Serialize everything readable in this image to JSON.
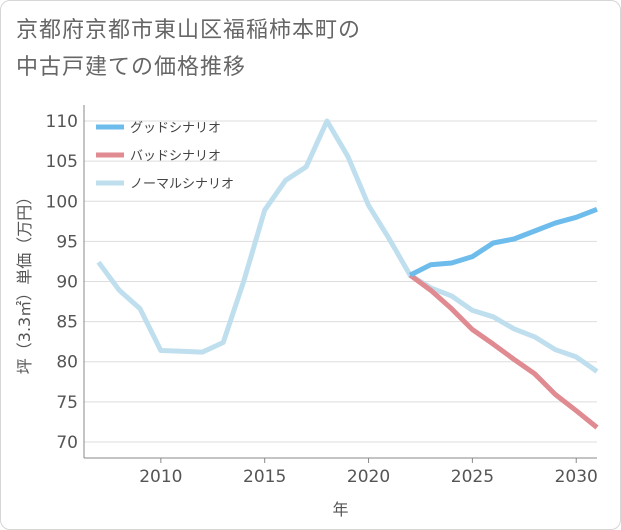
{
  "title": {
    "line1": "京都府京都市東山区福稲柿本町の",
    "line2": "中古戸建ての価格推移"
  },
  "chart_data": {
    "type": "line",
    "xlabel": "年",
    "ylabel": "坪（3.3㎡）単価（万円）",
    "xlim": [
      2006.3,
      2031
    ],
    "ylim": [
      68,
      112
    ],
    "x_ticks": [
      2010,
      2015,
      2020,
      2025,
      2030
    ],
    "y_ticks": [
      70,
      75,
      80,
      85,
      90,
      95,
      100,
      105,
      110
    ],
    "grid": "horizontal",
    "legend_position": "top-left",
    "series": [
      {
        "name": "グッドシナリオ",
        "color": "#6dbcec",
        "x": [
          2022,
          2023,
          2024,
          2025,
          2026,
          2027,
          2028,
          2029,
          2030,
          2031
        ],
        "y": [
          90.8,
          92.1,
          92.3,
          93.1,
          94.8,
          95.3,
          96.3,
          97.3,
          98.0,
          99.0
        ]
      },
      {
        "name": "バッドシナリオ",
        "color": "#e08b91",
        "x": [
          2022,
          2023,
          2024,
          2025,
          2026,
          2027,
          2028,
          2029,
          2030,
          2031
        ],
        "y": [
          90.8,
          88.9,
          86.6,
          84.0,
          82.2,
          80.3,
          78.5,
          75.9,
          73.9,
          71.8
        ]
      },
      {
        "name": "ノーマルシナリオ",
        "color": "#bfdfee",
        "x": [
          2007,
          2008,
          2009,
          2010,
          2011,
          2012,
          2013,
          2014,
          2015,
          2016,
          2017,
          2018,
          2019,
          2020,
          2021,
          2022,
          2023,
          2024,
          2025,
          2026,
          2027,
          2028,
          2029,
          2030,
          2031
        ],
        "y": [
          92.4,
          88.9,
          86.6,
          81.4,
          81.3,
          81.2,
          82.4,
          90.1,
          98.9,
          102.6,
          104.3,
          110.0,
          105.6,
          99.5,
          95.3,
          90.8,
          89.2,
          88.2,
          86.4,
          85.6,
          84.1,
          83.1,
          81.5,
          80.6,
          78.8
        ]
      }
    ]
  }
}
